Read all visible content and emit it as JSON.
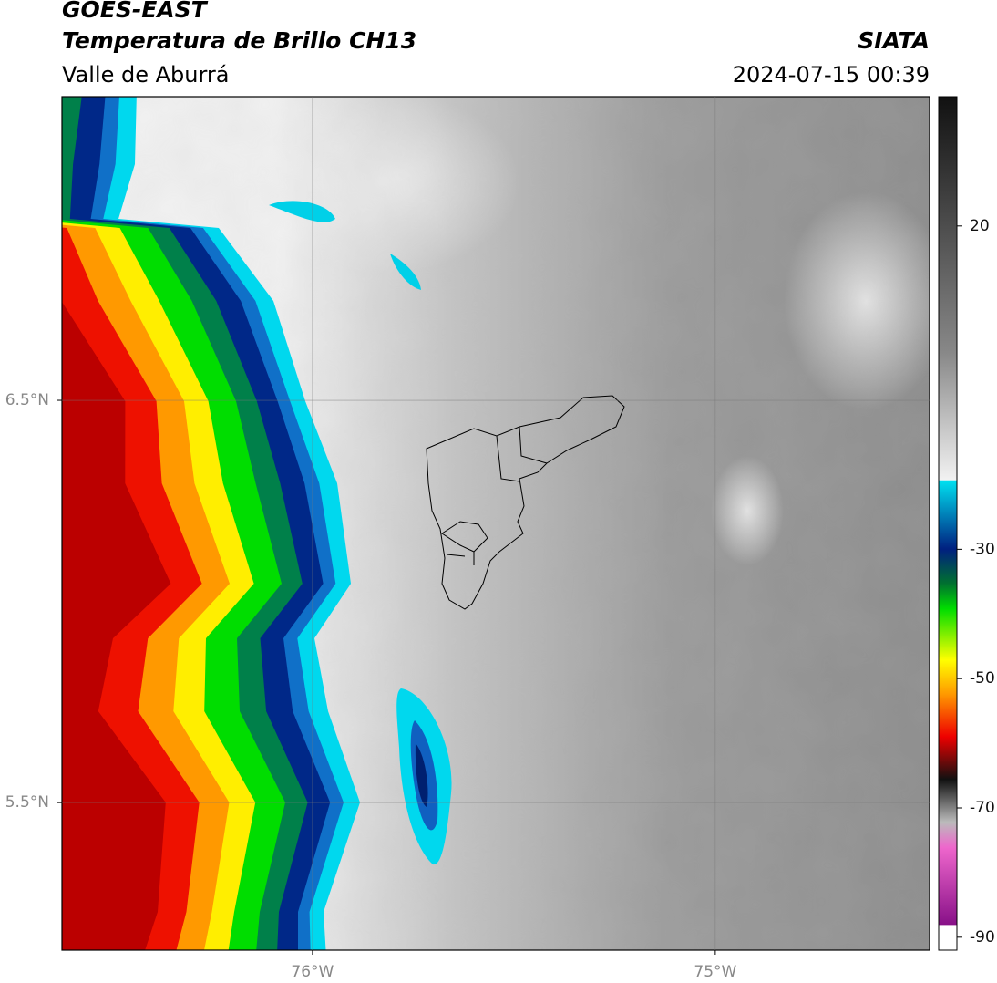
{
  "header": {
    "title": "GOES-EAST",
    "subtitle": "Temperatura de Brillo CH13",
    "region": "Valle de Aburrá",
    "source": "SIATA",
    "timestamp": "2024-07-15 00:39"
  },
  "map": {
    "xlim": [
      -76.622,
      -74.468
    ],
    "ylim": [
      5.133,
      7.255
    ],
    "xticks": [
      {
        "value": -76,
        "label": "76°W"
      },
      {
        "value": -75,
        "label": "75°W"
      }
    ],
    "yticks": [
      {
        "value": 6.5,
        "label": "6.5°N"
      },
      {
        "value": 5.5,
        "label": "5.5°N"
      }
    ],
    "grid": true
  },
  "colorbar": {
    "lim": [
      -92,
      40
    ],
    "ticks": [
      20,
      -30,
      -50,
      -70,
      -90
    ]
  }
}
